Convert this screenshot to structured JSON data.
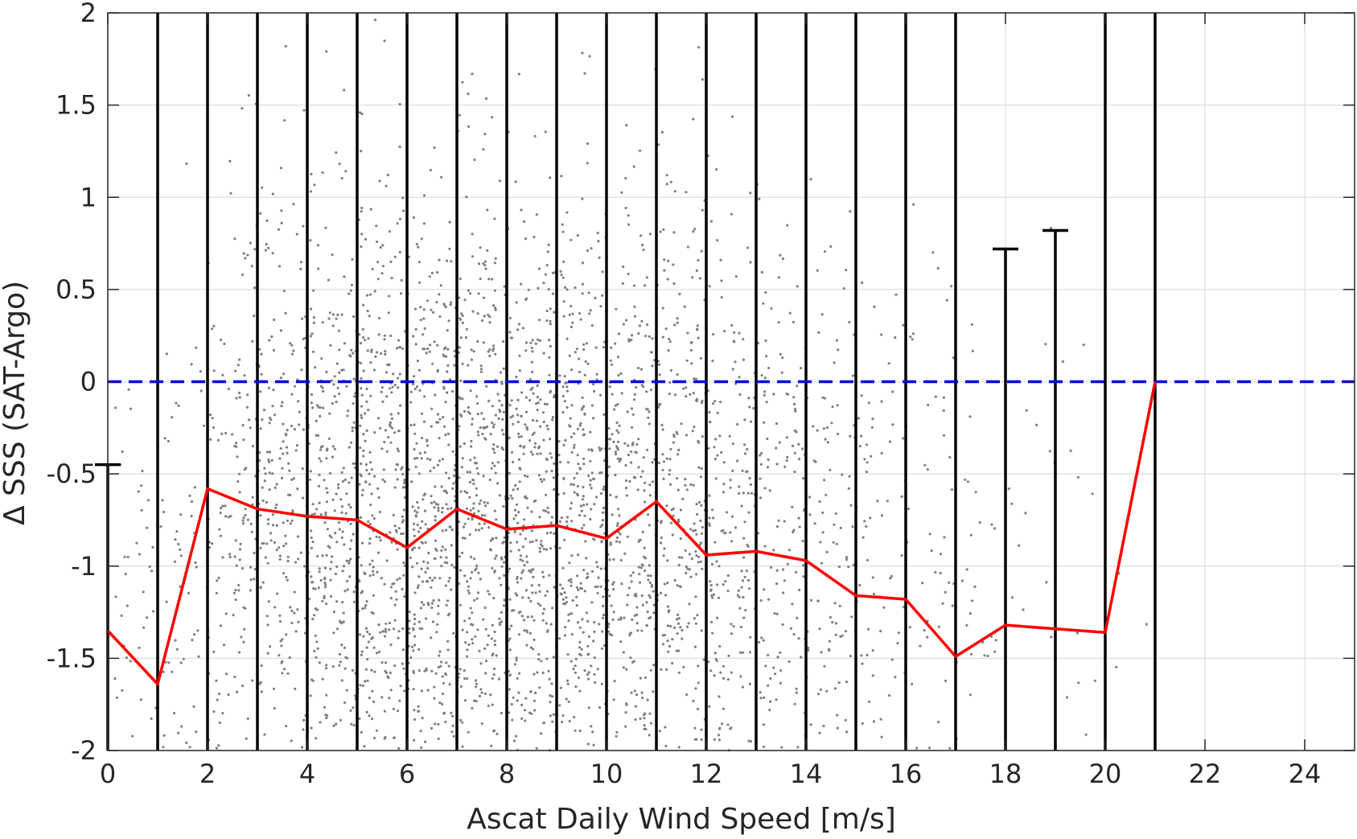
{
  "chart_data": {
    "type": "scatter",
    "title": "",
    "xlabel": "Ascat Daily Wind Speed [m/s]",
    "ylabel": "Δ SSS (SAT-Argo)",
    "xlim": [
      0,
      25
    ],
    "ylim": [
      -2,
      2
    ],
    "xticks": [
      0,
      2,
      4,
      6,
      8,
      10,
      12,
      14,
      16,
      18,
      20,
      22,
      24
    ],
    "xtick_labels": [
      "0",
      "2",
      "4",
      "6",
      "8",
      "10",
      "12",
      "14",
      "16",
      "18",
      "20",
      "22",
      "24"
    ],
    "yticks": [
      2,
      1.5,
      1,
      0.5,
      0,
      -0.5,
      -1,
      -1.5,
      -2
    ],
    "ytick_labels": [
      "2",
      "1.5",
      "1",
      "0.5",
      "0",
      "-0.5",
      "-1",
      "-1.5",
      "-2"
    ],
    "grid": true,
    "legend": "none",
    "reference_line": {
      "y": 0,
      "style": "dashed",
      "color": "#0000ee"
    },
    "mean_line": {
      "color": "#ff0000",
      "x": [
        0,
        1,
        2,
        3,
        4,
        5,
        6,
        7,
        8,
        9,
        10,
        11,
        12,
        13,
        14,
        15,
        16,
        17,
        18,
        19,
        20,
        21
      ],
      "y": [
        -1.35,
        -1.64,
        -0.58,
        -0.69,
        -0.73,
        -0.75,
        -0.9,
        -0.69,
        -0.8,
        -0.78,
        -0.85,
        -0.65,
        -0.94,
        -0.92,
        -0.97,
        -1.16,
        -1.18,
        -1.49,
        -1.32,
        -1.34,
        -1.36,
        0.0
      ]
    },
    "error_bars": {
      "color": "#000000",
      "x": [
        0,
        1,
        2,
        3,
        4,
        5,
        6,
        7,
        8,
        9,
        10,
        11,
        12,
        13,
        14,
        15,
        16,
        17,
        18,
        19,
        20,
        21
      ],
      "lower": [
        -2,
        -2,
        -2,
        -2,
        -2,
        -2,
        -2,
        -2,
        -2,
        -2,
        -2,
        -2,
        -2,
        -2,
        -2,
        -2,
        -2,
        -2,
        -2,
        -2,
        -2,
        -2
      ],
      "upper": [
        -0.45,
        2,
        2,
        2,
        2,
        2,
        2,
        2,
        2,
        2,
        2,
        2,
        2,
        2,
        2,
        2,
        2,
        2,
        0.72,
        0.82,
        2,
        2
      ]
    },
    "scatter_color": "#808080",
    "scatter_density": {
      "bin_edges": [
        0,
        1,
        2,
        3,
        4,
        5,
        6,
        7,
        8,
        9,
        10,
        11,
        12,
        13,
        14,
        15,
        16,
        17,
        18,
        19,
        20,
        21
      ],
      "counts": [
        45,
        70,
        150,
        230,
        310,
        360,
        380,
        390,
        380,
        350,
        310,
        260,
        200,
        150,
        110,
        75,
        50,
        32,
        18,
        10,
        6
      ],
      "center": [
        -1.2,
        -1.2,
        -0.6,
        -0.7,
        -0.7,
        -0.75,
        -0.8,
        -0.7,
        -0.8,
        -0.8,
        -0.8,
        -0.7,
        -0.9,
        -0.9,
        -0.95,
        -1.1,
        -1.1,
        -1.3,
        -1.2,
        -1.2,
        -1.3
      ],
      "spread": [
        0.8,
        0.8,
        0.9,
        0.9,
        0.9,
        0.9,
        0.9,
        0.9,
        0.9,
        0.9,
        0.9,
        0.9,
        0.9,
        0.9,
        0.9,
        0.85,
        0.85,
        0.8,
        0.85,
        0.85,
        0.8
      ]
    }
  }
}
